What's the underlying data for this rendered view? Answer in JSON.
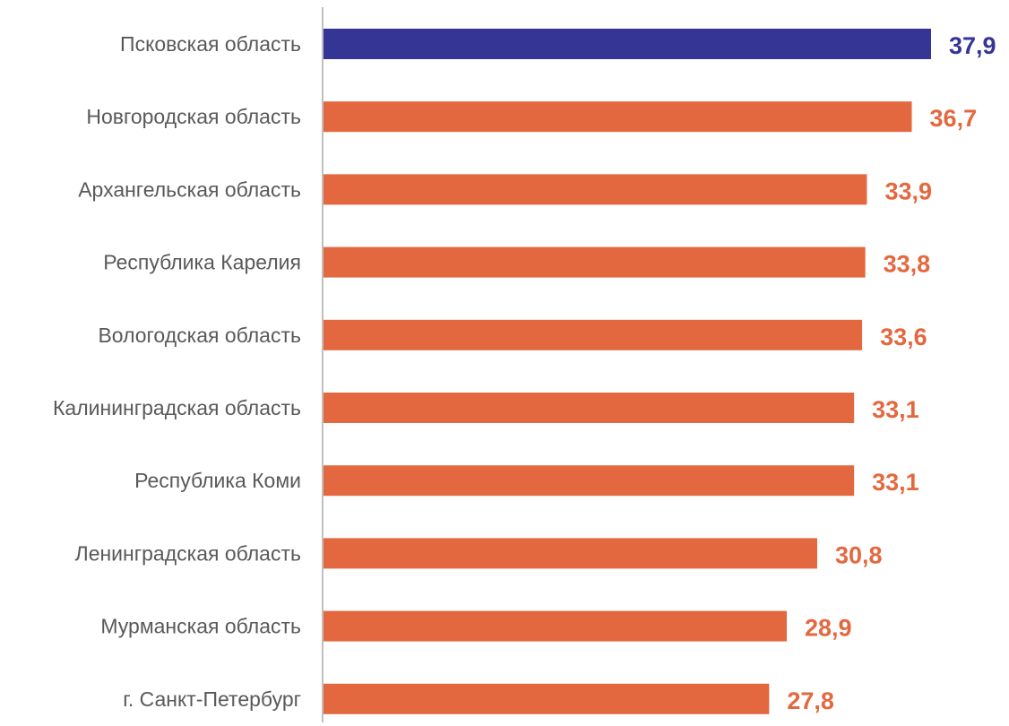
{
  "chart_data": {
    "type": "bar",
    "orientation": "horizontal",
    "categories": [
      "Псковская область",
      "Новгородская область",
      "Архангельская область",
      "Республика Карелия",
      "Вологодская область",
      "Калининградская область",
      "Республика Коми",
      "Ленинградская область",
      "Мурманская область",
      "г. Санкт-Петербург"
    ],
    "values": [
      37.9,
      36.7,
      33.9,
      33.8,
      33.6,
      33.1,
      33.1,
      30.8,
      28.9,
      27.8
    ],
    "value_labels": [
      "37,9",
      "36,7",
      "33,9",
      "33,8",
      "33,6",
      "33,1",
      "33,1",
      "30,8",
      "28,9",
      "27,8"
    ],
    "title": "",
    "xlabel": "",
    "ylabel": "",
    "xlim": [
      0,
      37.9
    ],
    "grid": false,
    "legend": "none",
    "highlight_index": 0,
    "colors": {
      "highlight": "#353596",
      "default": "#E4683F",
      "axis": "#BFBFBF",
      "category_text": "#595959"
    }
  }
}
